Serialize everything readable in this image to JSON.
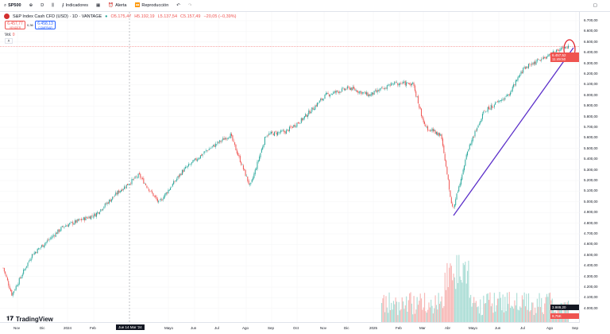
{
  "toolbar": {
    "symbol": "SP500",
    "interval": "D",
    "indicators": "Indicadores",
    "alert": "Alerta",
    "replay": "Reproducción"
  },
  "legend": {
    "title": "S&P Index Cash CFD (USD) · 1D · VANTAGE",
    "open": "O5.175,47",
    "high": "H5.192,19",
    "low": "L5.137,54",
    "close": "C5.157,49",
    "change": "−20,05 (−0,39%)",
    "sell_price": "6.457,77",
    "sell_label": "VENDER",
    "spread": "0,36",
    "buy_price": "6.458,13",
    "buy_label": "COMPRAR",
    "vol_label": "Vol.",
    "vol_value": "0"
  },
  "yaxis": {
    "labels": [
      "6.700,00",
      "6.600,00",
      "6.500,00",
      "6.400,00",
      "6.300,00",
      "6.200,00",
      "6.100,00",
      "6.000,00",
      "5.900,00",
      "5.800,00",
      "5.700,00",
      "5.600,00",
      "5.500,00",
      "5.400,00",
      "5.300,00",
      "5.200,00",
      "5.100,00",
      "5.000,00",
      "4.900,00",
      "4.800,00",
      "4.700,00",
      "4.600,00",
      "4.500,00",
      "4.400,00",
      "4.300,00",
      "4.200,00",
      "4.100,00",
      "4.000,00"
    ],
    "last_price": "6.457,52",
    "countdown": "11:49:50",
    "crosshair_price": "3.989,20",
    "vol_badge": "9,75K"
  },
  "xaxis": {
    "labels": [
      "Nov",
      "Dic",
      "2024",
      "Feb",
      "Mayo",
      "Jun",
      "Jul",
      "Ago",
      "Sep",
      "Oct",
      "Nov",
      "Dic",
      "2025",
      "Feb",
      "Mar",
      "Abr",
      "Mayo",
      "Jun",
      "Jul",
      "Ago",
      "Sep"
    ],
    "crosshair_date": "Jue 14 Mar '24"
  },
  "brand": "TradingView",
  "colors": {
    "up": "#26a69a",
    "down": "#ef5350",
    "trendline": "#5b2fc9",
    "highlight": "#e01b24"
  },
  "chart_data": {
    "type": "candlestick",
    "approx_closes": [
      [
        "2023-11",
        4357
      ],
      [
        "2023-11",
        4130
      ],
      [
        "2023-12",
        4500
      ],
      [
        "2024-01",
        4770
      ],
      [
        "2024-02",
        4880
      ],
      [
        "2024-03",
        5100
      ],
      [
        "2024-04",
        5250
      ],
      [
        "2024-04",
        4990
      ],
      [
        "2024-05",
        5290
      ],
      [
        "2024-06",
        5480
      ],
      [
        "2024-07",
        5630
      ],
      [
        "2024-08",
        5140
      ],
      [
        "2024-08",
        5630
      ],
      [
        "2024-09",
        5660
      ],
      [
        "2024-10",
        5770
      ],
      [
        "2024-11",
        6000
      ],
      [
        "2024-12",
        6070
      ],
      [
        "2025-01",
        6000
      ],
      [
        "2025-01",
        6110
      ],
      [
        "2025-02",
        6110
      ],
      [
        "2025-03",
        5700
      ],
      [
        "2025-03",
        5630
      ],
      [
        "2025-04",
        4920
      ],
      [
        "2025-04",
        5510
      ],
      [
        "2025-05",
        5850
      ],
      [
        "2025-06",
        6000
      ],
      [
        "2025-07",
        6260
      ],
      [
        "2025-08",
        6370
      ],
      [
        "2025-08",
        6450
      ]
    ],
    "ylim": [
      4000,
      6700
    ]
  }
}
